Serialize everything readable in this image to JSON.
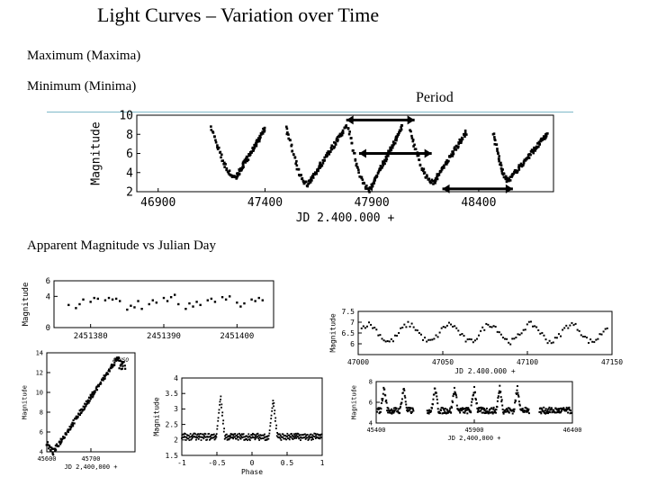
{
  "slide": {
    "title": "Light   Curves – Variation over Time",
    "maximum_label": "Maximum (Maxima)",
    "minimum_label": "Minimum (Minima)",
    "period_label": "Period",
    "apparent_label": "Apparent Magnitude vs Julian Day",
    "accent_line_color": "#7fb8c8"
  },
  "chart_data": [
    {
      "id": "main",
      "type": "scatter",
      "ylabel": "Magnitude",
      "xlabel": "JD 2.400.000 +",
      "xlim": [
        46800,
        48750
      ],
      "ylim": [
        10,
        2
      ],
      "x_ticks": [
        46900,
        47400,
        47900,
        48400
      ],
      "y_ticks": [
        2,
        4,
        6,
        8,
        10
      ],
      "cycles": [
        {
          "start": 47150,
          "peak": 47265,
          "end": 47400,
          "max_mag": 3.5,
          "min_mag": 8.6
        },
        {
          "start": 47500,
          "peak": 47600,
          "end": 47780,
          "max_mag": 2.8,
          "min_mag": 8.8
        },
        {
          "start": 47790,
          "peak": 47890,
          "end": 48040,
          "max_mag": 2.2,
          "min_mag": 8.7
        },
        {
          "start": 48080,
          "peak": 48190,
          "end": 48340,
          "max_mag": 3.0,
          "min_mag": 8.2
        },
        {
          "start": 48470,
          "peak": 48540,
          "end": 48720,
          "max_mag": 3.2,
          "min_mag": 8.0
        }
      ],
      "arrows": [
        {
          "from": 47840,
          "to": 48180,
          "mag": 6.0
        },
        {
          "from": 48230,
          "to": 48560,
          "mag": 2.3
        },
        {
          "from": 47780,
          "to": 48100,
          "mag": 9.5
        }
      ]
    },
    {
      "id": "small_top",
      "type": "scatter",
      "ylabel": "Magnitude",
      "xlabel": "",
      "xlim": [
        2451375,
        2451405
      ],
      "ylim": [
        6,
        0
      ],
      "x_ticks": [
        2451380,
        2451390,
        2451400
      ],
      "x_tick_labels": [
        "2451380",
        "2451390",
        "2451400"
      ],
      "y_ticks": [
        0,
        4,
        6
      ],
      "values": [
        [
          2451377,
          2.9
        ],
        [
          2451378,
          2.5
        ],
        [
          2451378.5,
          3.0
        ],
        [
          2451379,
          3.6
        ],
        [
          2451380,
          3.3
        ],
        [
          2451380.5,
          3.8
        ],
        [
          2451381,
          3.7
        ],
        [
          2451382,
          3.5
        ],
        [
          2451382.5,
          3.8
        ],
        [
          2451383,
          3.6
        ],
        [
          2451383.5,
          3.7
        ],
        [
          2451384,
          3.4
        ],
        [
          2451385,
          2.3
        ],
        [
          2451385.5,
          2.8
        ],
        [
          2451386,
          2.6
        ],
        [
          2451386.5,
          3.4
        ],
        [
          2451387,
          2.4
        ],
        [
          2451388,
          3.0
        ],
        [
          2451388.5,
          3.5
        ],
        [
          2451389,
          3.2
        ],
        [
          2451390,
          3.8
        ],
        [
          2451390.5,
          3.4
        ],
        [
          2451391,
          3.9
        ],
        [
          2451391.5,
          4.2
        ],
        [
          2451392,
          3.0
        ],
        [
          2451393,
          2.4
        ],
        [
          2451393.5,
          3.1
        ],
        [
          2451394,
          2.7
        ],
        [
          2451394.5,
          3.3
        ],
        [
          2451395,
          2.9
        ],
        [
          2451396,
          3.5
        ],
        [
          2451396.5,
          3.7
        ],
        [
          2451397,
          3.3
        ],
        [
          2451398,
          3.9
        ],
        [
          2451398.5,
          3.6
        ],
        [
          2451399,
          4.0
        ],
        [
          2451400,
          3.2
        ],
        [
          2451400.5,
          2.7
        ],
        [
          2451401,
          3.1
        ],
        [
          2451402,
          3.6
        ],
        [
          2451402.5,
          3.4
        ],
        [
          2451403,
          3.8
        ],
        [
          2451403.5,
          3.5
        ]
      ]
    },
    {
      "id": "right_top",
      "type": "scatter",
      "ylabel": "Magnitude",
      "xlabel": "JD 2.400.000 +",
      "xlim": [
        47000,
        47150
      ],
      "ylim": [
        7.5,
        5.5
      ],
      "x_ticks": [
        47000,
        47050,
        47100,
        47150
      ],
      "y_ticks": [
        6,
        6.5,
        7,
        7.5
      ]
    },
    {
      "id": "left_bottom",
      "type": "scatter",
      "ylabel": "Magnitude",
      "xlabel": "JD 2,400,000 +",
      "annotation": "AAVSO",
      "xlim": [
        45600,
        45800
      ],
      "ylim": [
        14,
        4
      ],
      "x_ticks": [
        45600,
        45700
      ],
      "x_tick_labels": [
        "45600",
        "45700"
      ],
      "y_ticks": [
        4,
        6,
        8,
        10,
        12,
        14
      ]
    },
    {
      "id": "phase",
      "type": "scatter",
      "ylabel": "Magnitude",
      "xlabel": "Phase",
      "xlim": [
        -1.0,
        1.0
      ],
      "ylim": [
        4.0,
        1.5
      ],
      "x_ticks": [
        -1.0,
        -0.5,
        0.0,
        0.5,
        1.0
      ],
      "y_ticks": [
        1.5,
        2.0,
        2.5,
        3.0,
        3.5,
        4.0
      ]
    },
    {
      "id": "right_bottom",
      "type": "scatter",
      "ylabel": "Magnitude",
      "xlabel": "JD 2,400,000 +",
      "xlim": [
        45400,
        46400
      ],
      "ylim": [
        8,
        4
      ],
      "x_ticks": [
        45400,
        45900,
        46400
      ],
      "y_ticks": [
        4,
        6,
        8
      ]
    }
  ]
}
